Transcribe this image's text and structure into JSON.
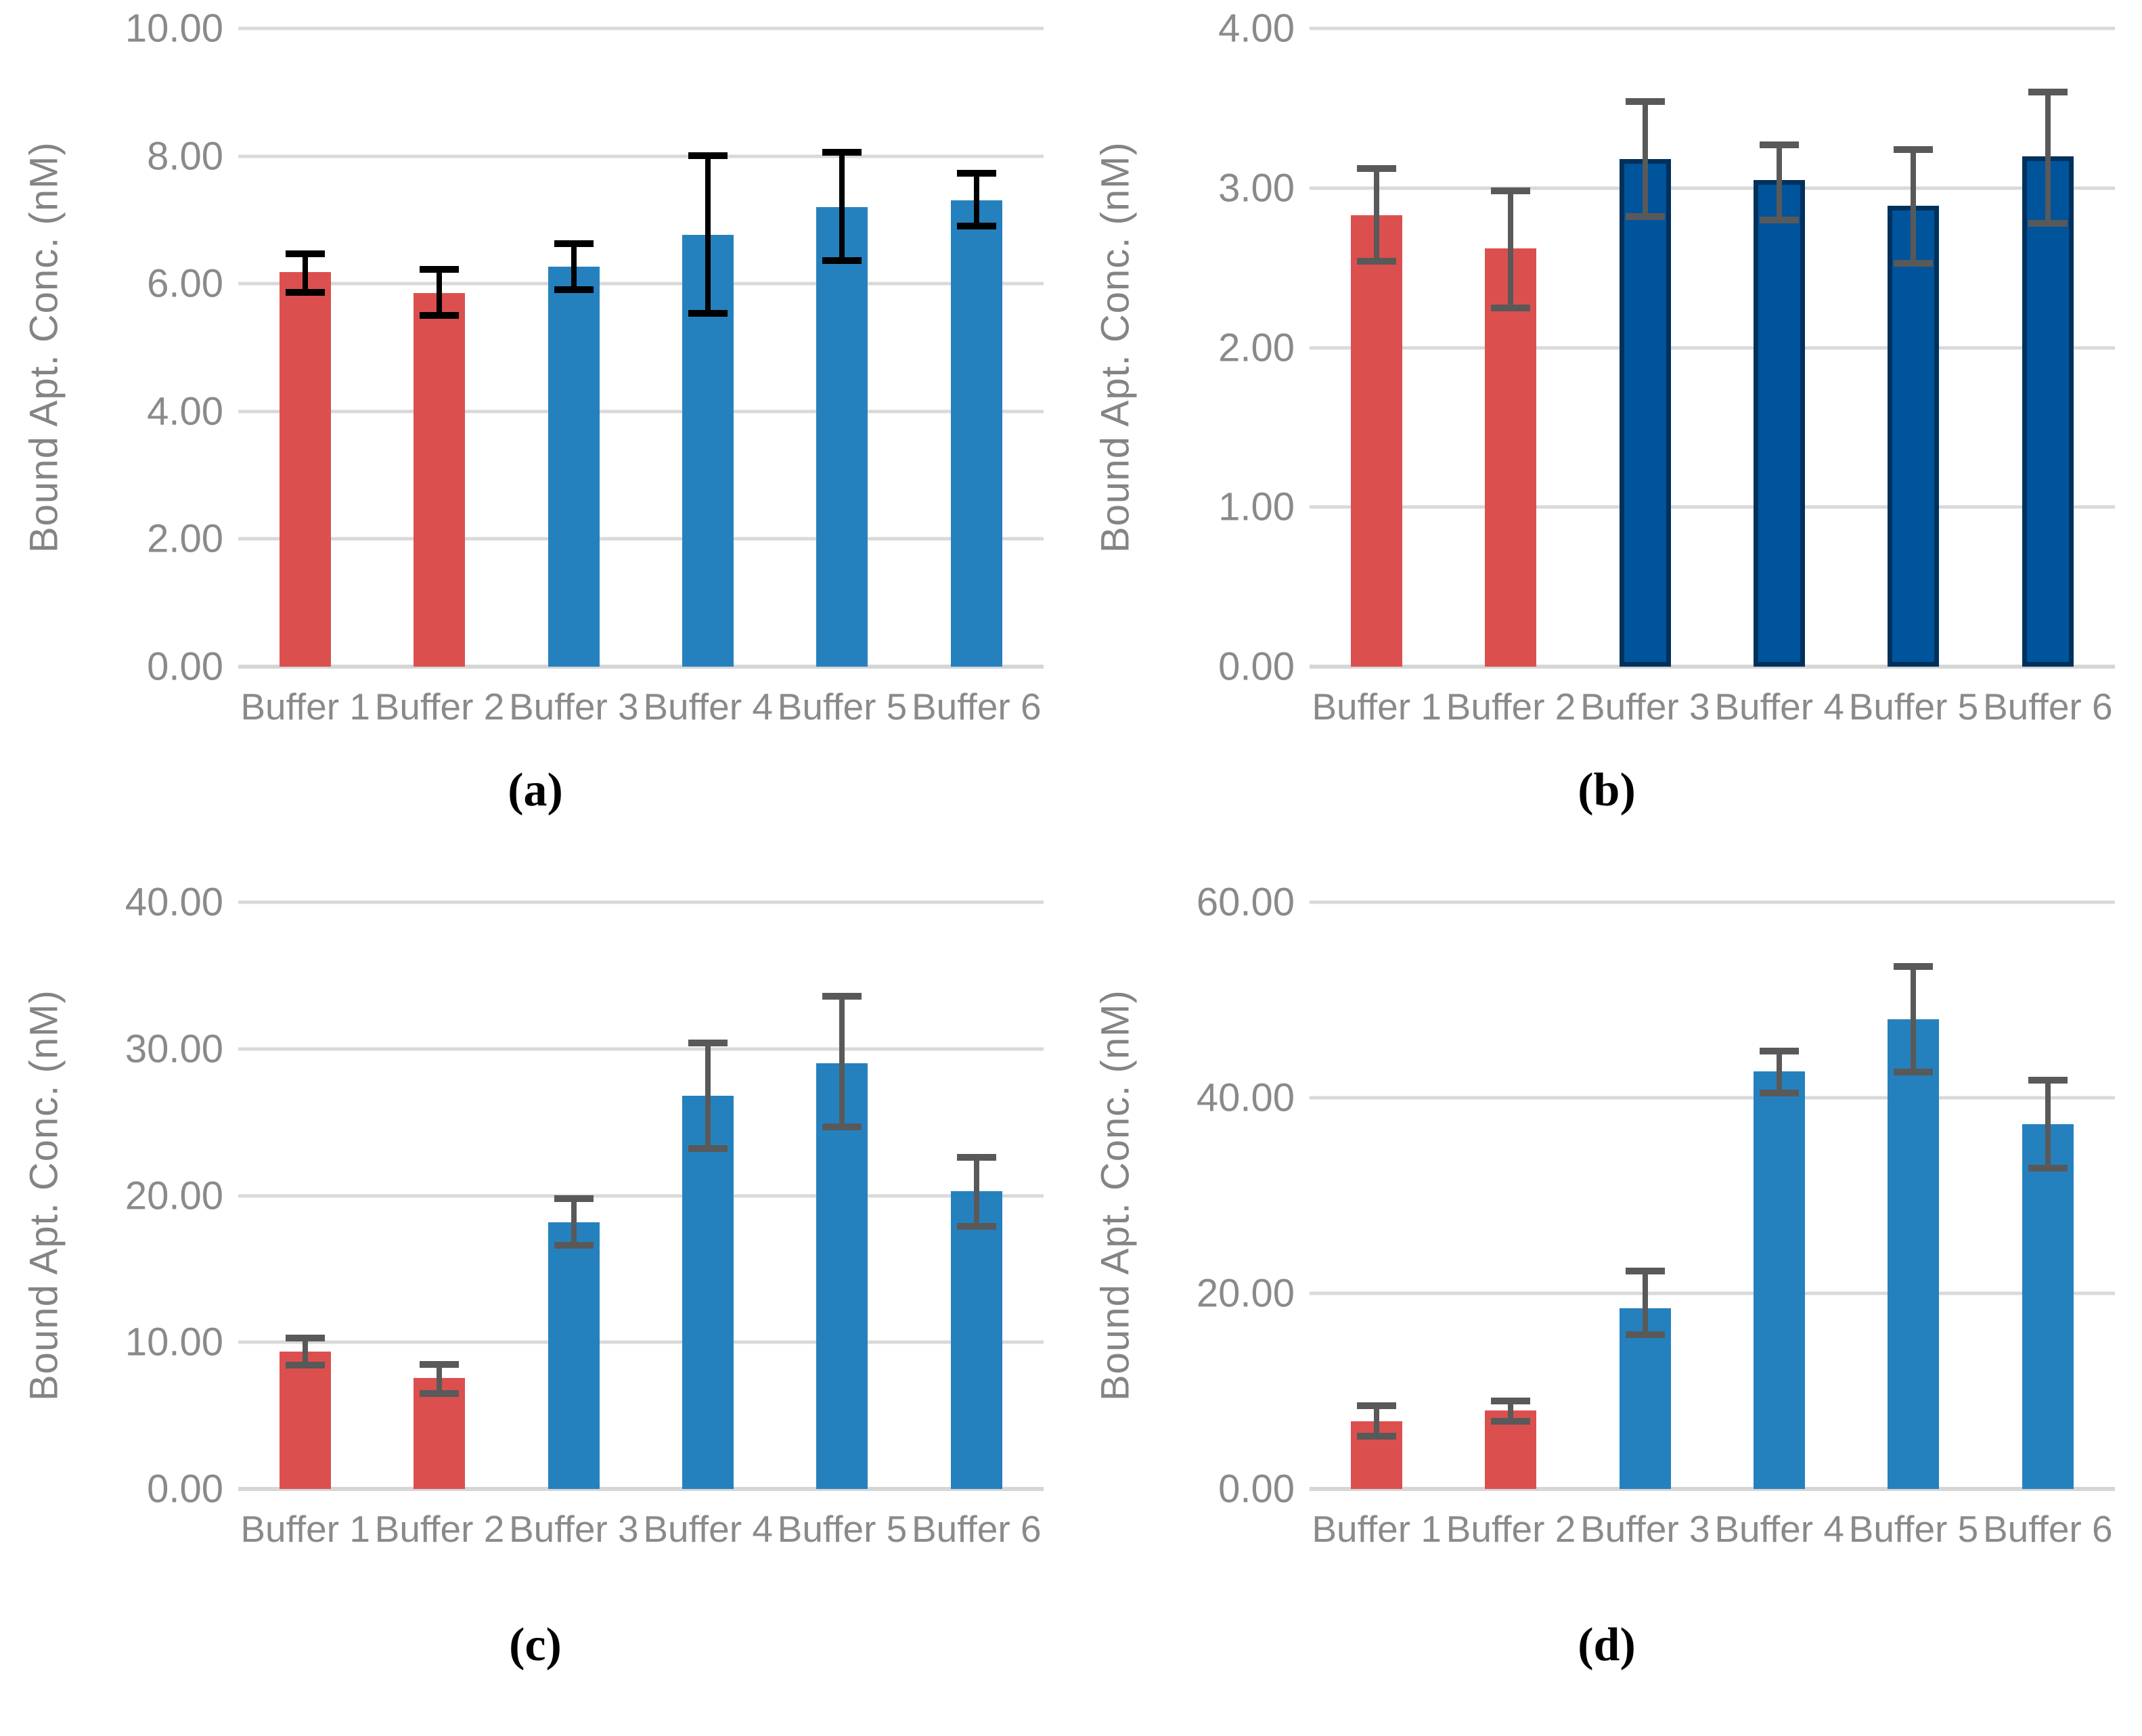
{
  "figure": {
    "y_axis_title": "Bound Apt. Conc. (nM)",
    "categories": [
      "Buffer 1",
      "Buffer 2",
      "Buffer 3",
      "Buffer 4",
      "Buffer 5",
      "Buffer 6"
    ],
    "captions": [
      "(a)",
      "(b)",
      "(c)",
      "(d)"
    ],
    "colors": {
      "red": "#DB504F",
      "blue": "#2581BE",
      "navy_fill": "#00549B",
      "navy_border": "#00305C",
      "gridline": "#D9D9D9",
      "axis_text": "#8A8A8A",
      "error_black": "#000000",
      "error_gray": "#595959"
    }
  },
  "chart_data": [
    {
      "type": "bar",
      "panel": "a",
      "title": "(a)",
      "ylabel": "Bound Apt. Conc. (nM)",
      "categories": [
        "Buffer 1",
        "Buffer 2",
        "Buffer 3",
        "Buffer 4",
        "Buffer 5",
        "Buffer 6"
      ],
      "values": [
        6.18,
        5.85,
        6.27,
        6.77,
        7.2,
        7.31
      ],
      "error_low": [
        5.86,
        5.5,
        5.91,
        5.54,
        6.36,
        6.9
      ],
      "error_high": [
        6.47,
        6.22,
        6.63,
        8.01,
        8.06,
        7.73
      ],
      "bar_colors": [
        "#DB504F",
        "#DB504F",
        "#2581BE",
        "#2581BE",
        "#2581BE",
        "#2581BE"
      ],
      "bar_borders": [
        null,
        null,
        null,
        null,
        null,
        null
      ],
      "error_color": "#000000",
      "ylim": [
        0,
        10
      ],
      "ytick_step": 2,
      "ytick_labels": [
        "0.00",
        "2.00",
        "4.00",
        "6.00",
        "8.00",
        "10.00"
      ],
      "grid": true,
      "legend": "none"
    },
    {
      "type": "bar",
      "panel": "b",
      "title": "(b)",
      "ylabel": "Bound Apt. Conc. (nM)",
      "categories": [
        "Buffer 1",
        "Buffer 2",
        "Buffer 3",
        "Buffer 4",
        "Buffer 5",
        "Buffer 6"
      ],
      "values": [
        2.83,
        2.62,
        3.18,
        3.05,
        2.89,
        3.2
      ],
      "error_low": [
        2.54,
        2.25,
        2.82,
        2.8,
        2.53,
        2.78
      ],
      "error_high": [
        3.12,
        2.98,
        3.54,
        3.27,
        3.24,
        3.6
      ],
      "bar_colors": [
        "#DB504F",
        "#DB504F",
        "#00549B",
        "#00549B",
        "#00549B",
        "#00549B"
      ],
      "bar_borders": [
        null,
        null,
        "#00305C",
        "#00305C",
        "#00305C",
        "#00305C"
      ],
      "error_color": "#595959",
      "ylim": [
        0,
        4
      ],
      "ytick_step": 1,
      "ytick_labels": [
        "0.00",
        "1.00",
        "2.00",
        "3.00",
        "4.00"
      ],
      "grid": true,
      "legend": "none"
    },
    {
      "type": "bar",
      "panel": "c",
      "title": "(c)",
      "ylabel": "Bound Apt. Conc. (nM)",
      "categories": [
        "Buffer 1",
        "Buffer 2",
        "Buffer 3",
        "Buffer 4",
        "Buffer 5",
        "Buffer 6"
      ],
      "values": [
        9.35,
        7.55,
        18.2,
        26.8,
        29.0,
        20.3
      ],
      "error_low": [
        8.45,
        6.5,
        16.6,
        23.2,
        24.7,
        17.9
      ],
      "error_high": [
        10.3,
        8.5,
        19.8,
        30.4,
        33.6,
        22.6
      ],
      "bar_colors": [
        "#DB504F",
        "#DB504F",
        "#2581BE",
        "#2581BE",
        "#2581BE",
        "#2581BE"
      ],
      "bar_borders": [
        null,
        null,
        null,
        null,
        null,
        null
      ],
      "error_color": "#595959",
      "ylim": [
        0,
        40
      ],
      "ytick_step": 10,
      "ytick_labels": [
        "0.00",
        "10.00",
        "20.00",
        "30.00",
        "40.00"
      ],
      "grid": true,
      "legend": "none"
    },
    {
      "type": "bar",
      "panel": "d",
      "title": "(d)",
      "ylabel": "Bound Apt. Conc. (nM)",
      "categories": [
        "Buffer 1",
        "Buffer 2",
        "Buffer 3",
        "Buffer 4",
        "Buffer 5",
        "Buffer 6"
      ],
      "values": [
        6.9,
        8.0,
        18.5,
        42.7,
        48.0,
        37.3
      ],
      "error_low": [
        5.4,
        6.9,
        15.8,
        40.5,
        42.6,
        32.8
      ],
      "error_high": [
        8.5,
        9.0,
        22.3,
        44.8,
        53.4,
        41.8
      ],
      "bar_colors": [
        "#DB504F",
        "#DB504F",
        "#2581BE",
        "#2581BE",
        "#2581BE",
        "#2581BE"
      ],
      "bar_borders": [
        null,
        null,
        null,
        null,
        null,
        null
      ],
      "error_color": "#595959",
      "ylim": [
        0,
        60
      ],
      "ytick_step": 20,
      "ytick_labels": [
        "0.00",
        "20.00",
        "40.00",
        "60.00"
      ],
      "grid": true,
      "legend": "none"
    }
  ]
}
